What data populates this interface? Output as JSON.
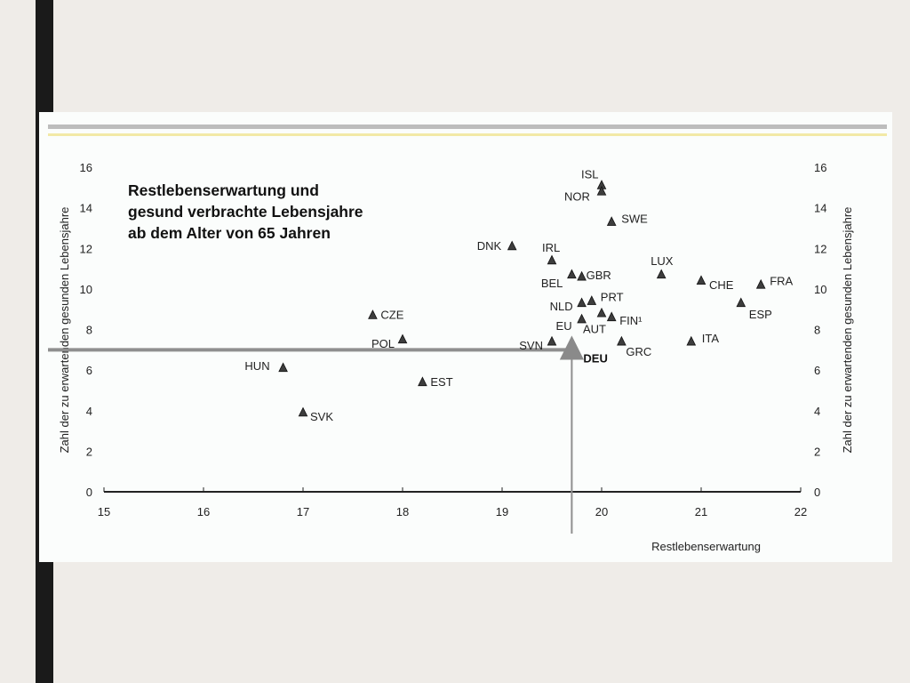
{
  "chart_data": {
    "type": "scatter",
    "title": [
      "Restlebenserwartung und",
      "gesund verbrachte Lebensjahre",
      "ab dem Alter von 65 Jahren"
    ],
    "xlabel": "Restlebenserwartung",
    "ylabel": "Zahl der zu erwartenden gesunden Lebensjahre",
    "xlim": [
      15,
      22
    ],
    "ylim": [
      0,
      16
    ],
    "xticks": [
      "15",
      "16",
      "17",
      "18",
      "19",
      "20",
      "21",
      "22"
    ],
    "yticks": [
      "0",
      "2",
      "4",
      "6",
      "8",
      "10",
      "12",
      "14",
      "16"
    ],
    "marker_color": "#3d3d3d",
    "highlight_color": "#8a8a8a",
    "reference_line_color": "#8f8f8f",
    "grid": false,
    "points": [
      {
        "label": "HUN",
        "x": 16.8,
        "y": 6.1
      },
      {
        "label": "SVK",
        "x": 17.0,
        "y": 3.9
      },
      {
        "label": "CZE",
        "x": 17.7,
        "y": 8.7
      },
      {
        "label": "POL",
        "x": 18.0,
        "y": 7.5
      },
      {
        "label": "EST",
        "x": 18.2,
        "y": 5.4
      },
      {
        "label": "DNK",
        "x": 19.1,
        "y": 12.1
      },
      {
        "label": "IRL",
        "x": 19.5,
        "y": 11.4
      },
      {
        "label": "SVN",
        "x": 19.5,
        "y": 7.4
      },
      {
        "label": "BEL",
        "x": 19.7,
        "y": 10.7
      },
      {
        "label": "GBR",
        "x": 19.8,
        "y": 10.6
      },
      {
        "label": "NLD",
        "x": 19.8,
        "y": 9.3
      },
      {
        "label": "PRT",
        "x": 19.9,
        "y": 9.4
      },
      {
        "label": "EU",
        "x": 19.8,
        "y": 8.5
      },
      {
        "label": "AUT",
        "x": 20.0,
        "y": 8.8
      },
      {
        "label": "FIN¹",
        "x": 20.1,
        "y": 8.6
      },
      {
        "label": "ISL",
        "x": 20.0,
        "y": 15.1
      },
      {
        "label": "NOR",
        "x": 20.0,
        "y": 14.8
      },
      {
        "label": "SWE",
        "x": 20.1,
        "y": 13.3
      },
      {
        "label": "GRC",
        "x": 20.2,
        "y": 7.4
      },
      {
        "label": "LUX",
        "x": 20.6,
        "y": 10.7
      },
      {
        "label": "CHE",
        "x": 21.0,
        "y": 10.4
      },
      {
        "label": "ITA",
        "x": 20.9,
        "y": 7.4
      },
      {
        "label": "ESP",
        "x": 21.4,
        "y": 9.3
      },
      {
        "label": "FRA",
        "x": 21.6,
        "y": 10.2
      }
    ],
    "highlight": {
      "label": "DEU",
      "x": 19.7,
      "y": 7.0
    }
  }
}
